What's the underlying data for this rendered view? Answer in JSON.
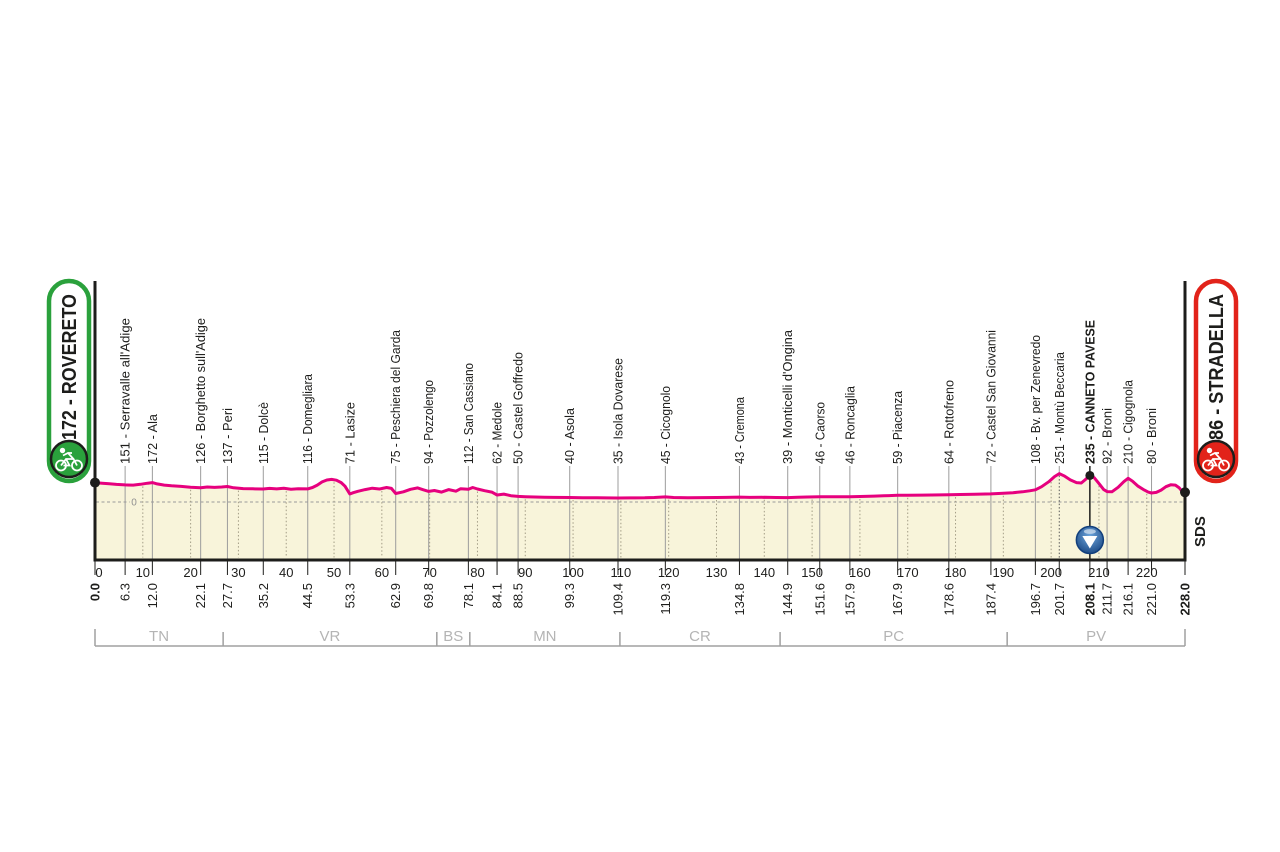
{
  "stage": {
    "start_badge": "172 - ROVERETO",
    "finish_badge": "86 - STRADELLA",
    "signature": "SDS"
  },
  "chart_data": {
    "type": "area",
    "title": "Stage elevation profile Rovereto - Stradella",
    "x_unit": "km",
    "x_range": [
      0,
      228
    ],
    "x_tick_interval": 10,
    "x_tick_labels": [
      "0",
      "10",
      "20",
      "30",
      "40",
      "50",
      "60",
      "70",
      "80",
      "90",
      "100",
      "110",
      "120",
      "130",
      "140",
      "150",
      "160",
      "170",
      "180",
      "190",
      "200",
      "210",
      "220"
    ],
    "baseline_label": "0",
    "start": {
      "km": 0.0,
      "km_label": "0.0",
      "elev_m": 172,
      "badge": "172 - ROVERETO",
      "color": "#2aa13c"
    },
    "finish": {
      "km": 228.0,
      "km_label": "228.0",
      "elev_m": 86,
      "badge": "86 - STRADELLA",
      "color": "#e2231a"
    },
    "waypoints": [
      {
        "km": 0.0,
        "elev": 172,
        "name": "",
        "km_label": "0.0",
        "bold": true
      },
      {
        "km": 6.3,
        "elev": 151,
        "name": "151 - Serravalle all'Adige",
        "km_label": "6.3"
      },
      {
        "km": 12.0,
        "elev": 172,
        "name": "172 - Ala",
        "km_label": "12.0"
      },
      {
        "km": 22.1,
        "elev": 126,
        "name": "126 - Borghetto sull'Adige",
        "km_label": "22.1"
      },
      {
        "km": 27.7,
        "elev": 137,
        "name": "137 - Peri",
        "km_label": "27.7"
      },
      {
        "km": 35.2,
        "elev": 115,
        "name": "115 - Dolcè",
        "km_label": "35.2"
      },
      {
        "km": 44.5,
        "elev": 116,
        "name": "116 - Domegliara",
        "km_label": "44.5"
      },
      {
        "km": 53.3,
        "elev": 71,
        "name": "71 - Lasize",
        "km_label": "53.3"
      },
      {
        "km": 62.9,
        "elev": 75,
        "name": "75 - Peschiera del Garda",
        "km_label": "62.9"
      },
      {
        "km": 69.8,
        "elev": 94,
        "name": "94 - Pozzolengo",
        "km_label": "69.8"
      },
      {
        "km": 78.1,
        "elev": 112,
        "name": "112 - San Cassiano",
        "km_label": "78.1"
      },
      {
        "km": 84.1,
        "elev": 62,
        "name": "62 - Medole",
        "km_label": "84.1"
      },
      {
        "km": 88.5,
        "elev": 50,
        "name": "50 - Castel Goffredo",
        "km_label": "88.5"
      },
      {
        "km": 99.3,
        "elev": 40,
        "name": "40 - Asola",
        "km_label": "99.3"
      },
      {
        "km": 109.4,
        "elev": 35,
        "name": "35 - Isola Dovarese",
        "km_label": "109.4"
      },
      {
        "km": 119.3,
        "elev": 45,
        "name": "45 - Cicognolo",
        "km_label": "119.3"
      },
      {
        "km": 134.8,
        "elev": 43,
        "name": "43 - Cremona",
        "km_label": "134.8"
      },
      {
        "km": 144.9,
        "elev": 39,
        "name": "39 - Monticelli d'Ongina",
        "km_label": "144.9"
      },
      {
        "km": 151.6,
        "elev": 46,
        "name": "46 - Caorso",
        "km_label": "151.6"
      },
      {
        "km": 157.9,
        "elev": 46,
        "name": "46 - Roncaglia",
        "km_label": "157.9"
      },
      {
        "km": 167.9,
        "elev": 59,
        "name": "59 - Piacenza",
        "km_label": "167.9"
      },
      {
        "km": 178.6,
        "elev": 64,
        "name": "64 - Rottofreno",
        "km_label": "178.6"
      },
      {
        "km": 187.4,
        "elev": 72,
        "name": "72 - Castel San Giovanni",
        "km_label": "187.4"
      },
      {
        "km": 196.7,
        "elev": 108,
        "name": "108 - Bv. per Zenevredo",
        "km_label": "196.7"
      },
      {
        "km": 201.7,
        "elev": 251,
        "name": "251 - Montù Beccaria",
        "km_label": "201.7",
        "dotted_below": true
      },
      {
        "km": 208.1,
        "elev": 235,
        "name": "235 - CANNETO PAVESE",
        "km_label": "208.1",
        "bold": true,
        "dot": true,
        "marker": "descent-sprint-marker"
      },
      {
        "km": 211.7,
        "elev": 92,
        "name": "92 - Broni",
        "km_label": "211.7"
      },
      {
        "km": 216.1,
        "elev": 210,
        "name": "210 - Cigognola",
        "km_label": "216.1"
      },
      {
        "km": 221.0,
        "elev": 80,
        "name": "80 - Broni",
        "km_label": "221.0"
      },
      {
        "km": 228.0,
        "elev": 86,
        "name": "",
        "km_label": "228.0",
        "bold": true
      }
    ],
    "profile": [
      [
        0,
        172
      ],
      [
        1.5,
        166
      ],
      [
        3,
        161
      ],
      [
        4.5,
        156
      ],
      [
        6.3,
        151
      ],
      [
        8,
        150
      ],
      [
        9.5,
        157
      ],
      [
        11,
        166
      ],
      [
        12,
        172
      ],
      [
        13,
        160
      ],
      [
        14.5,
        150
      ],
      [
        16,
        143
      ],
      [
        18,
        138
      ],
      [
        20,
        131
      ],
      [
        22.1,
        126
      ],
      [
        23.5,
        133
      ],
      [
        25,
        129
      ],
      [
        26.5,
        133
      ],
      [
        27.7,
        137
      ],
      [
        29,
        126
      ],
      [
        31,
        119
      ],
      [
        33,
        117
      ],
      [
        35.2,
        115
      ],
      [
        36.5,
        120
      ],
      [
        38,
        116
      ],
      [
        39.5,
        121
      ],
      [
        41,
        113
      ],
      [
        42.5,
        117
      ],
      [
        44.5,
        116
      ],
      [
        45.5,
        128
      ],
      [
        46.5,
        150
      ],
      [
        47.5,
        178
      ],
      [
        48.5,
        195
      ],
      [
        49.5,
        200
      ],
      [
        50.5,
        193
      ],
      [
        51.5,
        172
      ],
      [
        52.3,
        140
      ],
      [
        53.3,
        71
      ],
      [
        54,
        82
      ],
      [
        55,
        95
      ],
      [
        56.5,
        110
      ],
      [
        58,
        122
      ],
      [
        59.5,
        115
      ],
      [
        61,
        128
      ],
      [
        62,
        120
      ],
      [
        62.9,
        75
      ],
      [
        64.5,
        90
      ],
      [
        66,
        112
      ],
      [
        67.5,
        125
      ],
      [
        68.7,
        108
      ],
      [
        69.8,
        94
      ],
      [
        71,
        102
      ],
      [
        72.5,
        88
      ],
      [
        74,
        110
      ],
      [
        75.5,
        96
      ],
      [
        76.5,
        118
      ],
      [
        78.1,
        112
      ],
      [
        79,
        128
      ],
      [
        80,
        115
      ],
      [
        81.5,
        100
      ],
      [
        83,
        88
      ],
      [
        84.1,
        62
      ],
      [
        85.5,
        70
      ],
      [
        87,
        56
      ],
      [
        88.5,
        50
      ],
      [
        90,
        47
      ],
      [
        92,
        44
      ],
      [
        94,
        42
      ],
      [
        96,
        41
      ],
      [
        99.3,
        40
      ],
      [
        102,
        38
      ],
      [
        105,
        37
      ],
      [
        107,
        36
      ],
      [
        109.4,
        35
      ],
      [
        112,
        36
      ],
      [
        115,
        37
      ],
      [
        117,
        40
      ],
      [
        119.3,
        45
      ],
      [
        121,
        40
      ],
      [
        124,
        38
      ],
      [
        127,
        39
      ],
      [
        130,
        40
      ],
      [
        132,
        41
      ],
      [
        134.8,
        43
      ],
      [
        137,
        41
      ],
      [
        140,
        42
      ],
      [
        142.5,
        40
      ],
      [
        144.9,
        39
      ],
      [
        147,
        42
      ],
      [
        149,
        44
      ],
      [
        151.6,
        46
      ],
      [
        154,
        47
      ],
      [
        157.9,
        46
      ],
      [
        160,
        49
      ],
      [
        163,
        52
      ],
      [
        165,
        55
      ],
      [
        167.9,
        59
      ],
      [
        170,
        60
      ],
      [
        173,
        61
      ],
      [
        175,
        62
      ],
      [
        178.6,
        64
      ],
      [
        181,
        66
      ],
      [
        184,
        68
      ],
      [
        187.4,
        72
      ],
      [
        189.5,
        76
      ],
      [
        192,
        82
      ],
      [
        194,
        90
      ],
      [
        195.5,
        99
      ],
      [
        196.7,
        108
      ],
      [
        198,
        135
      ],
      [
        199.5,
        180
      ],
      [
        200.7,
        225
      ],
      [
        201.7,
        251
      ],
      [
        202.7,
        232
      ],
      [
        204,
        196
      ],
      [
        205.3,
        172
      ],
      [
        206.3,
        168
      ],
      [
        207.2,
        200
      ],
      [
        208.1,
        235
      ],
      [
        209,
        215
      ],
      [
        210,
        165
      ],
      [
        211,
        110
      ],
      [
        211.7,
        92
      ],
      [
        212.7,
        90
      ],
      [
        214,
        130
      ],
      [
        215.2,
        180
      ],
      [
        216.1,
        210
      ],
      [
        217,
        185
      ],
      [
        218.2,
        140
      ],
      [
        219.5,
        105
      ],
      [
        220.3,
        88
      ],
      [
        221,
        80
      ],
      [
        222,
        85
      ],
      [
        223,
        105
      ],
      [
        224,
        135
      ],
      [
        225,
        152
      ],
      [
        226,
        150
      ],
      [
        226.8,
        125
      ],
      [
        227.4,
        95
      ],
      [
        228,
        86
      ]
    ],
    "provinces": [
      {
        "code": "TN",
        "from_km": 0,
        "to_km": 26.8
      },
      {
        "code": "VR",
        "from_km": 26.8,
        "to_km": 71.5
      },
      {
        "code": "BS",
        "from_km": 71.5,
        "to_km": 78.4
      },
      {
        "code": "MN",
        "from_km": 78.4,
        "to_km": 109.8
      },
      {
        "code": "CR",
        "from_km": 109.8,
        "to_km": 143.3
      },
      {
        "code": "PC",
        "from_km": 143.3,
        "to_km": 190.8
      },
      {
        "code": "PV",
        "from_km": 190.8,
        "to_km": 228
      }
    ],
    "signature": "SDS",
    "colors": {
      "line_pink": "#e6007e",
      "area_fill": "#f8f4da",
      "grid_gray": "#9c9c9c",
      "text_dark": "#1d1d1b",
      "province_gray": "#b4b4b4",
      "start_green": "#2aa13c",
      "finish_red": "#e2231a",
      "marker_blue": "#2a6db5",
      "marker_blue_dark": "#123f7c"
    }
  }
}
